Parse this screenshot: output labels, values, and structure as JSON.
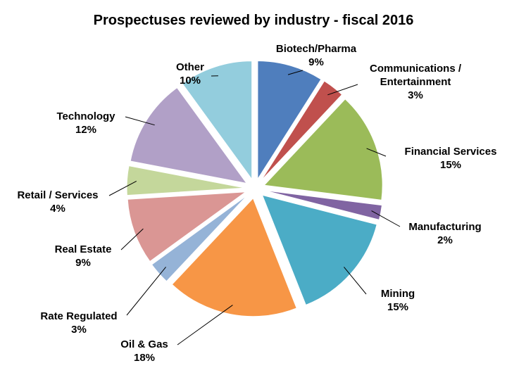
{
  "chart_data": {
    "type": "pie",
    "title": "Prospectuses reviewed by industry - fiscal 2016",
    "categories": [
      "Biotech/Pharma",
      "Communications / Entertainment",
      "Financial Services",
      "Manufacturing",
      "Mining",
      "Oil & Gas",
      "Rate Regulated",
      "Real Estate",
      "Retail / Services",
      "Technology",
      "Other"
    ],
    "values": [
      9,
      3,
      15,
      2,
      15,
      18,
      3,
      9,
      4,
      12,
      10
    ],
    "value_labels": [
      "9%",
      "3%",
      "15%",
      "2%",
      "15%",
      "18%",
      "3%",
      "9%",
      "4%",
      "12%",
      "10%"
    ],
    "colors": [
      "#4f7ebd",
      "#c0504d",
      "#9bbb59",
      "#8064a2",
      "#4bacc6",
      "#f79646",
      "#95b3d7",
      "#da9694",
      "#c4d79b",
      "#b1a0c7",
      "#93cddd"
    ]
  }
}
